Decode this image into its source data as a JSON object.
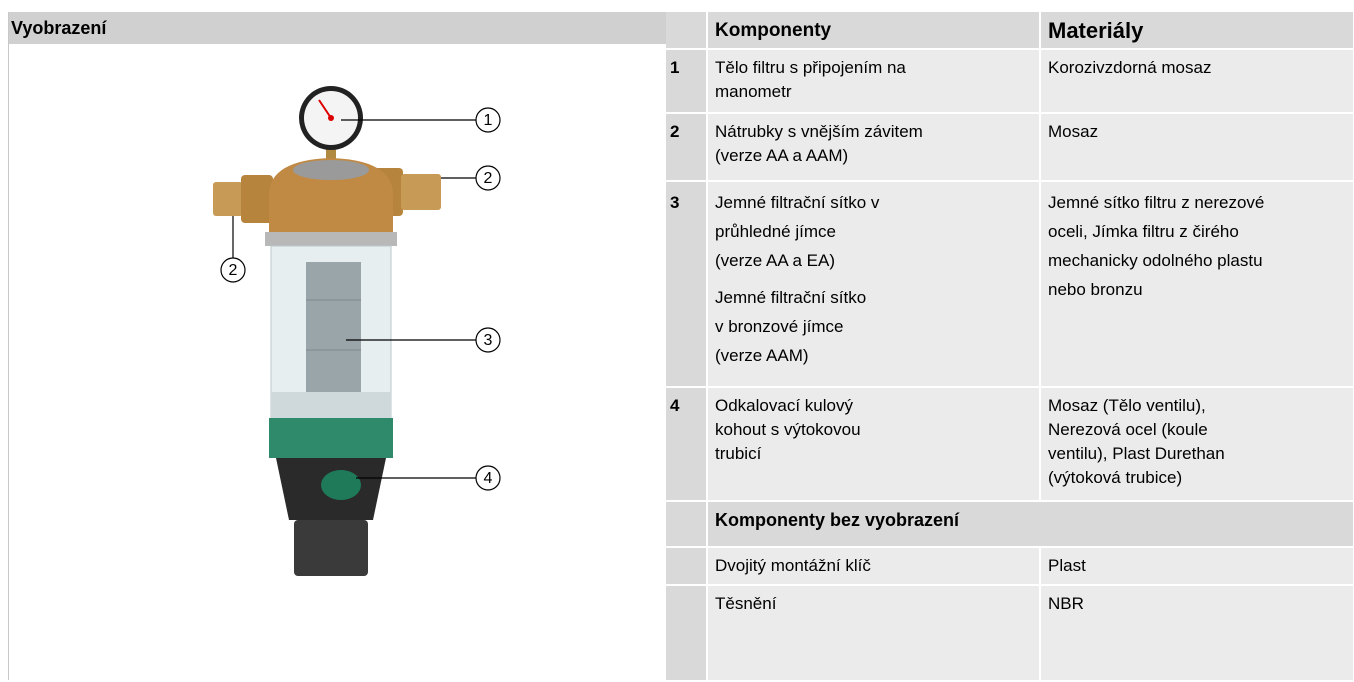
{
  "figure": {
    "title": "Vyobrazení",
    "callouts": [
      "1",
      "2",
      "2",
      "3",
      "4"
    ]
  },
  "table": {
    "header": {
      "component": "Komponenty",
      "material": "Materiály"
    },
    "rows": [
      {
        "number": "1",
        "component": [
          "Tělo filtru s připojením na",
          "manometr"
        ],
        "material": [
          "Korozivzdorná mosaz"
        ]
      },
      {
        "number": "2",
        "component": [
          "Nátrubky s vnějším závitem",
          "(verze AA a AAM)"
        ],
        "material": [
          "Mosaz"
        ]
      },
      {
        "number": "3",
        "component": [
          "Jemné filtrační sítko v",
          "průhledné jímce",
          "(verze AA a  EA)",
          "Jemné filtrační sítko",
          "v bronzové jímce",
          "(verze AAM)"
        ],
        "material": [
          "Jemné sítko filtru z nerezové",
          "oceli, Jímka filtru z čirého",
          "mechanicky odolného plastu",
          "nebo bronzu"
        ]
      },
      {
        "number": "4",
        "component": [
          "Odkalovací kulový",
          "kohout s výtokovou",
          "trubicí"
        ],
        "material": [
          "Mosaz (Tělo ventilu),",
          "Nerezová ocel (koule",
          "ventilu), Plast Durethan",
          "(výtoková trubice)"
        ]
      }
    ],
    "section": "Komponenty bez vyobrazení",
    "extra_rows": [
      {
        "component": "Dvojitý montážní klíč",
        "material": "Plast"
      },
      {
        "component": "Těsnění",
        "material": "NBR"
      }
    ]
  }
}
